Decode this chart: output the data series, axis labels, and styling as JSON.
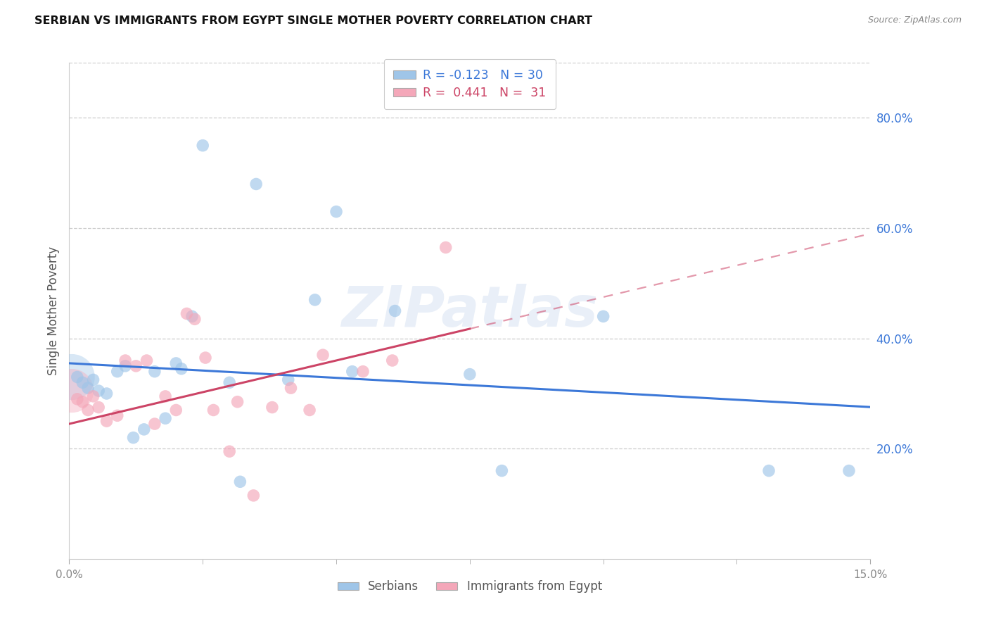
{
  "title": "SERBIAN VS IMMIGRANTS FROM EGYPT SINGLE MOTHER POVERTY CORRELATION CHART",
  "source": "Source: ZipAtlas.com",
  "ylabel": "Single Mother Poverty",
  "xlim": [
    0.0,
    15.0
  ],
  "ylim": [
    0.0,
    90.0
  ],
  "yticks": [
    20.0,
    40.0,
    60.0,
    80.0
  ],
  "ytick_labels": [
    "20.0%",
    "40.0%",
    "60.0%",
    "80.0%"
  ],
  "xticks_major": [
    0.0,
    15.0
  ],
  "xtick_labels_major": [
    "0.0%",
    "15.0%"
  ],
  "xticks_minor": [
    2.5,
    5.0,
    7.5,
    10.0,
    12.5
  ],
  "serbian_color": "#9fc5e8",
  "egypt_color": "#f4a7b9",
  "serbian_line_color": "#3c78d8",
  "egypt_line_color": "#cc4466",
  "watermark": "ZIPatlas",
  "serbian_points": [
    [
      0.15,
      33.0
    ],
    [
      0.25,
      32.0
    ],
    [
      0.35,
      31.0
    ],
    [
      0.45,
      32.5
    ],
    [
      0.55,
      30.5
    ],
    [
      0.7,
      30.0
    ],
    [
      0.9,
      34.0
    ],
    [
      1.05,
      35.0
    ],
    [
      1.2,
      22.0
    ],
    [
      1.4,
      23.5
    ],
    [
      1.6,
      34.0
    ],
    [
      1.8,
      25.5
    ],
    [
      2.0,
      35.5
    ],
    [
      2.1,
      34.5
    ],
    [
      2.3,
      44.0
    ],
    [
      2.5,
      75.0
    ],
    [
      3.5,
      68.0
    ],
    [
      3.0,
      32.0
    ],
    [
      3.2,
      14.0
    ],
    [
      4.1,
      32.5
    ],
    [
      4.6,
      47.0
    ],
    [
      5.0,
      63.0
    ],
    [
      5.3,
      34.0
    ],
    [
      6.1,
      45.0
    ],
    [
      7.5,
      33.5
    ],
    [
      8.1,
      16.0
    ],
    [
      10.0,
      44.0
    ],
    [
      13.1,
      16.0
    ],
    [
      14.6,
      16.0
    ]
  ],
  "egypt_points": [
    [
      0.15,
      29.0
    ],
    [
      0.25,
      28.5
    ],
    [
      0.35,
      27.0
    ],
    [
      0.45,
      29.5
    ],
    [
      0.55,
      27.5
    ],
    [
      0.7,
      25.0
    ],
    [
      0.9,
      26.0
    ],
    [
      1.05,
      36.0
    ],
    [
      1.25,
      35.0
    ],
    [
      1.45,
      36.0
    ],
    [
      1.6,
      24.5
    ],
    [
      1.8,
      29.5
    ],
    [
      2.0,
      27.0
    ],
    [
      2.2,
      44.5
    ],
    [
      2.35,
      43.5
    ],
    [
      2.55,
      36.5
    ],
    [
      2.7,
      27.0
    ],
    [
      3.0,
      19.5
    ],
    [
      3.15,
      28.5
    ],
    [
      3.45,
      11.5
    ],
    [
      3.8,
      27.5
    ],
    [
      4.15,
      31.0
    ],
    [
      4.5,
      27.0
    ],
    [
      4.75,
      37.0
    ],
    [
      5.5,
      34.0
    ],
    [
      6.05,
      36.0
    ],
    [
      7.05,
      56.5
    ]
  ],
  "serbian_large_x": 0.05,
  "serbian_large_y": 33.0,
  "egypt_large_x": 0.05,
  "egypt_large_y": 30.5,
  "serbian_intercept": 35.5,
  "serbian_slope": -0.53,
  "egypt_intercept": 24.5,
  "egypt_slope": 2.3,
  "egypt_dashed_start": 7.5
}
